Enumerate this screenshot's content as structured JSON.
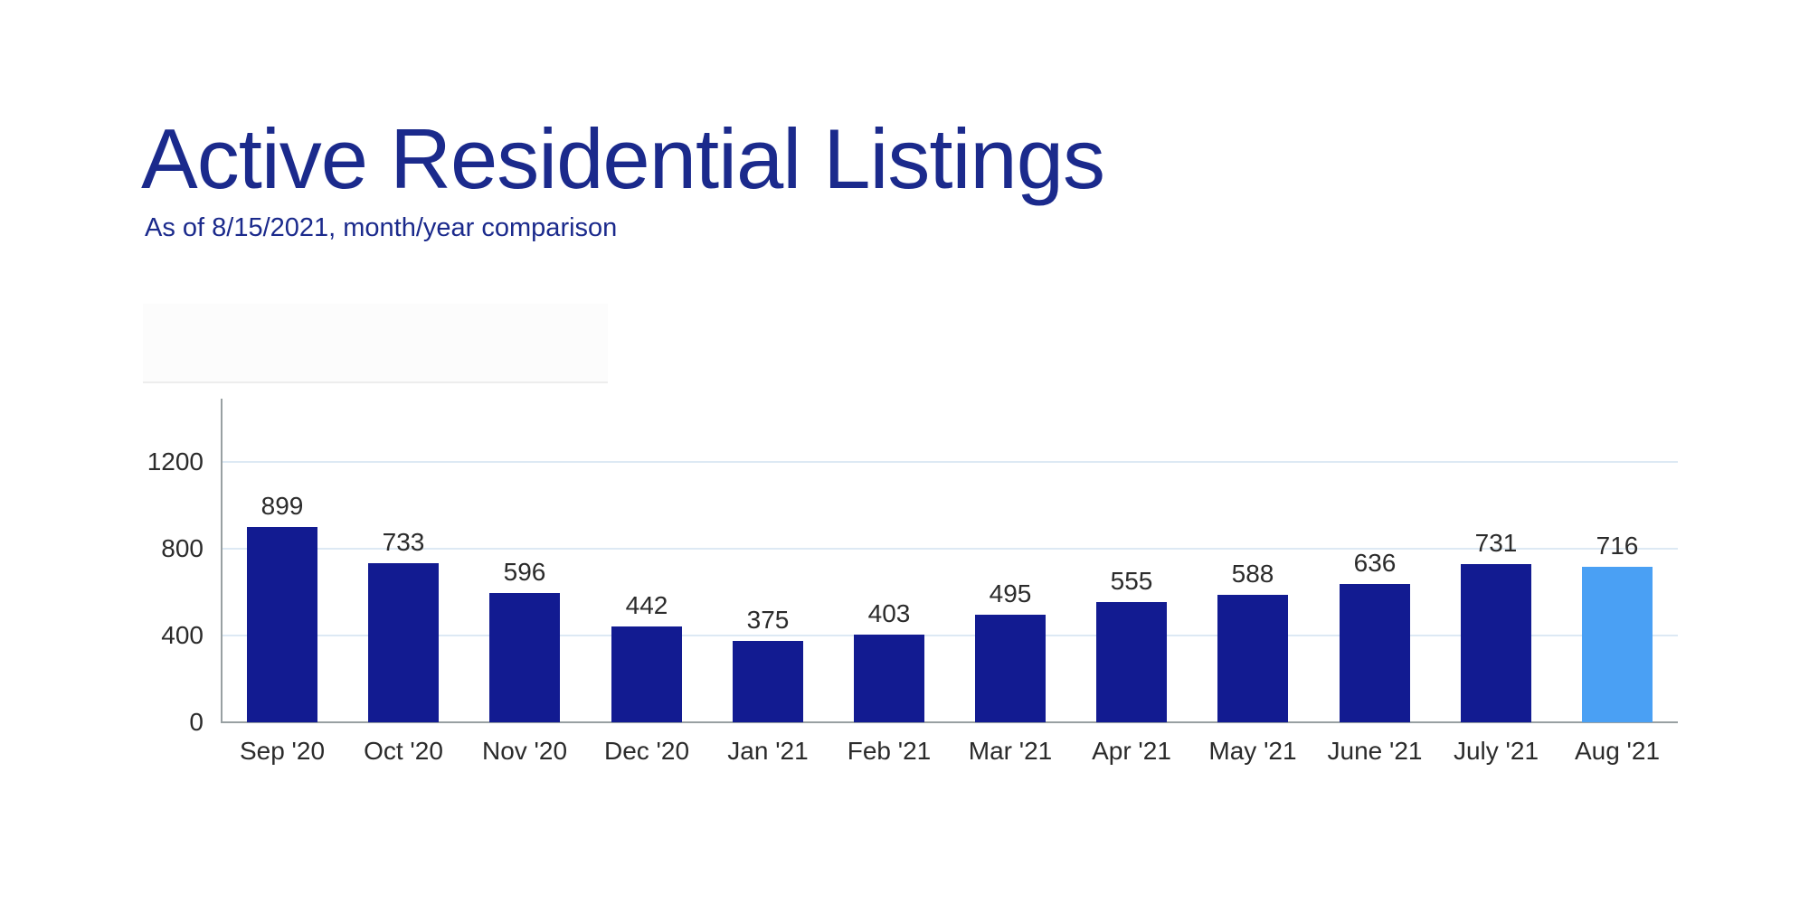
{
  "theme": {
    "background": "#ffffff",
    "title_color": "#1b2a8c",
    "gridline_color": "#dde9f4",
    "axis_line_color": "#98a0a2",
    "chart_label_color": "#2b2b2b"
  },
  "header": {
    "title": "Active Residential Listings",
    "subtitle": "As of 8/15/2021, month/year comparison"
  },
  "chart_data": {
    "type": "bar",
    "title": "Active Residential Listings",
    "subtitle": "As of 8/15/2021, month/year comparison",
    "categories": [
      "Sep '20",
      "Oct '20",
      "Nov '20",
      "Dec '20",
      "Jan '21",
      "Feb '21",
      "Mar '21",
      "Apr '21",
      "May '21",
      "June '21",
      "July '21",
      "Aug '21"
    ],
    "values": [
      899,
      733,
      596,
      442,
      375,
      403,
      495,
      555,
      588,
      636,
      731,
      716
    ],
    "highlight_index": 11,
    "colors": {
      "bar": "#121b91",
      "highlight_bar": "#4aa0f4"
    },
    "xlabel": "",
    "ylabel": "",
    "yticks": [
      0,
      400,
      800,
      1200
    ],
    "ylim": [
      0,
      1490
    ],
    "grid": "horizontal",
    "legend": "none",
    "value_labels": "above-bars"
  }
}
